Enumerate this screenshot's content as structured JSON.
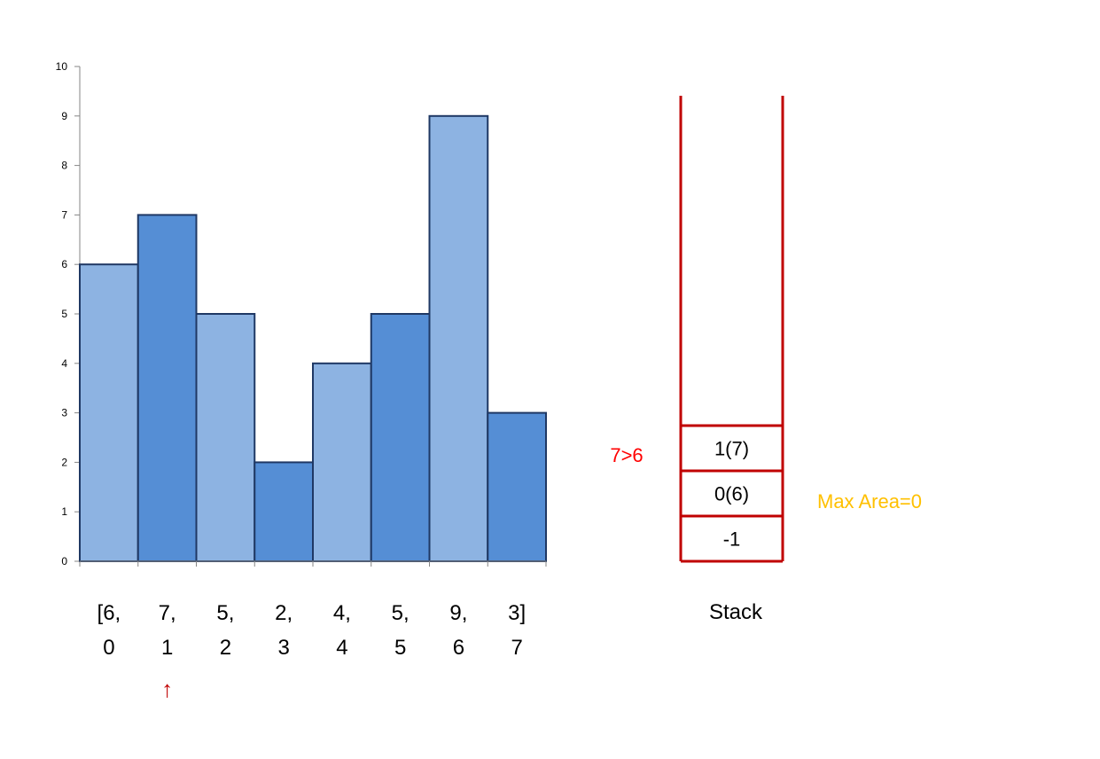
{
  "chart_data": {
    "type": "bar",
    "categories": [
      "0",
      "1",
      "2",
      "3",
      "4",
      "5",
      "6",
      "7"
    ],
    "values": [
      6,
      7,
      5,
      2,
      4,
      5,
      9,
      3
    ],
    "ylim": [
      0,
      10
    ],
    "yticks": [
      "0",
      "1",
      "2",
      "3",
      "4",
      "5",
      "6",
      "7",
      "8",
      "9",
      "10"
    ],
    "grid": false,
    "legend": "none",
    "bar_colors": [
      "#8db3e2",
      "#558ed5",
      "#8db3e2",
      "#558ed5",
      "#8db3e2",
      "#558ed5",
      "#8db3e2",
      "#558ed5"
    ],
    "bar_edge_color": "#1f3864",
    "array_row": [
      "[6,",
      "7,",
      "5,",
      "2,",
      "4,",
      "5,",
      "9,",
      "3]"
    ],
    "index_row": [
      "0",
      "1",
      "2",
      "3",
      "4",
      "5",
      "6",
      "7"
    ],
    "current_index": 1
  },
  "pointer": {
    "symbol": "↑",
    "color": "#c00000"
  },
  "stack": {
    "label": "Stack",
    "items_top_to_bottom": [
      "1(7)",
      "0(6)",
      "-1"
    ],
    "border_color": "#c00000"
  },
  "comparison": {
    "text": "7>6",
    "color": "#ff0000"
  },
  "max_area": {
    "text": "Max Area=0",
    "color": "#ffc000"
  }
}
